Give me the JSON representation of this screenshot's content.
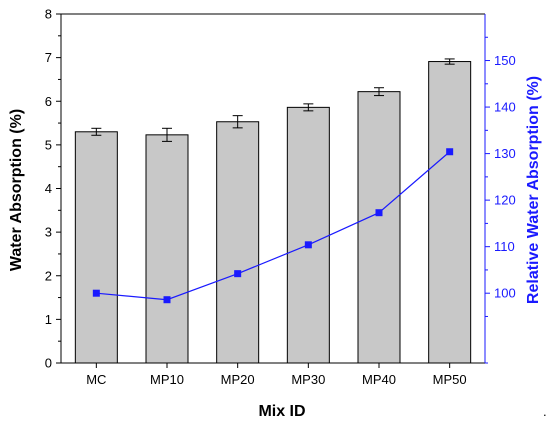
{
  "chart_data": {
    "type": "bar",
    "categories": [
      "MC",
      "MP10",
      "MP20",
      "MP30",
      "MP40",
      "MP50"
    ],
    "series": [
      {
        "type": "bar",
        "axis": "left",
        "values": [
          5.3,
          5.23,
          5.53,
          5.86,
          6.22,
          6.91
        ],
        "errors": [
          0.08,
          0.15,
          0.14,
          0.08,
          0.09,
          0.06
        ],
        "color": "#c8c8c8"
      },
      {
        "type": "line",
        "axis": "right",
        "values": [
          100.0,
          98.6,
          104.2,
          110.4,
          117.3,
          130.4
        ],
        "color": "#1a1aff"
      }
    ],
    "xlabel": "Mix ID",
    "ylabel": "Water Absorption (%)",
    "y2label": "Relative Water Absorption (%)",
    "ylim": [
      0,
      8
    ],
    "y2lim": [
      85,
      160
    ],
    "yticks": [
      "0",
      "1",
      "2",
      "3",
      "4",
      "5",
      "6",
      "7",
      "8"
    ],
    "y2ticks": [
      "100",
      "110",
      "120",
      "130",
      "140",
      "150"
    ],
    "grid": false,
    "legend": "none"
  },
  "corner_mark": "."
}
